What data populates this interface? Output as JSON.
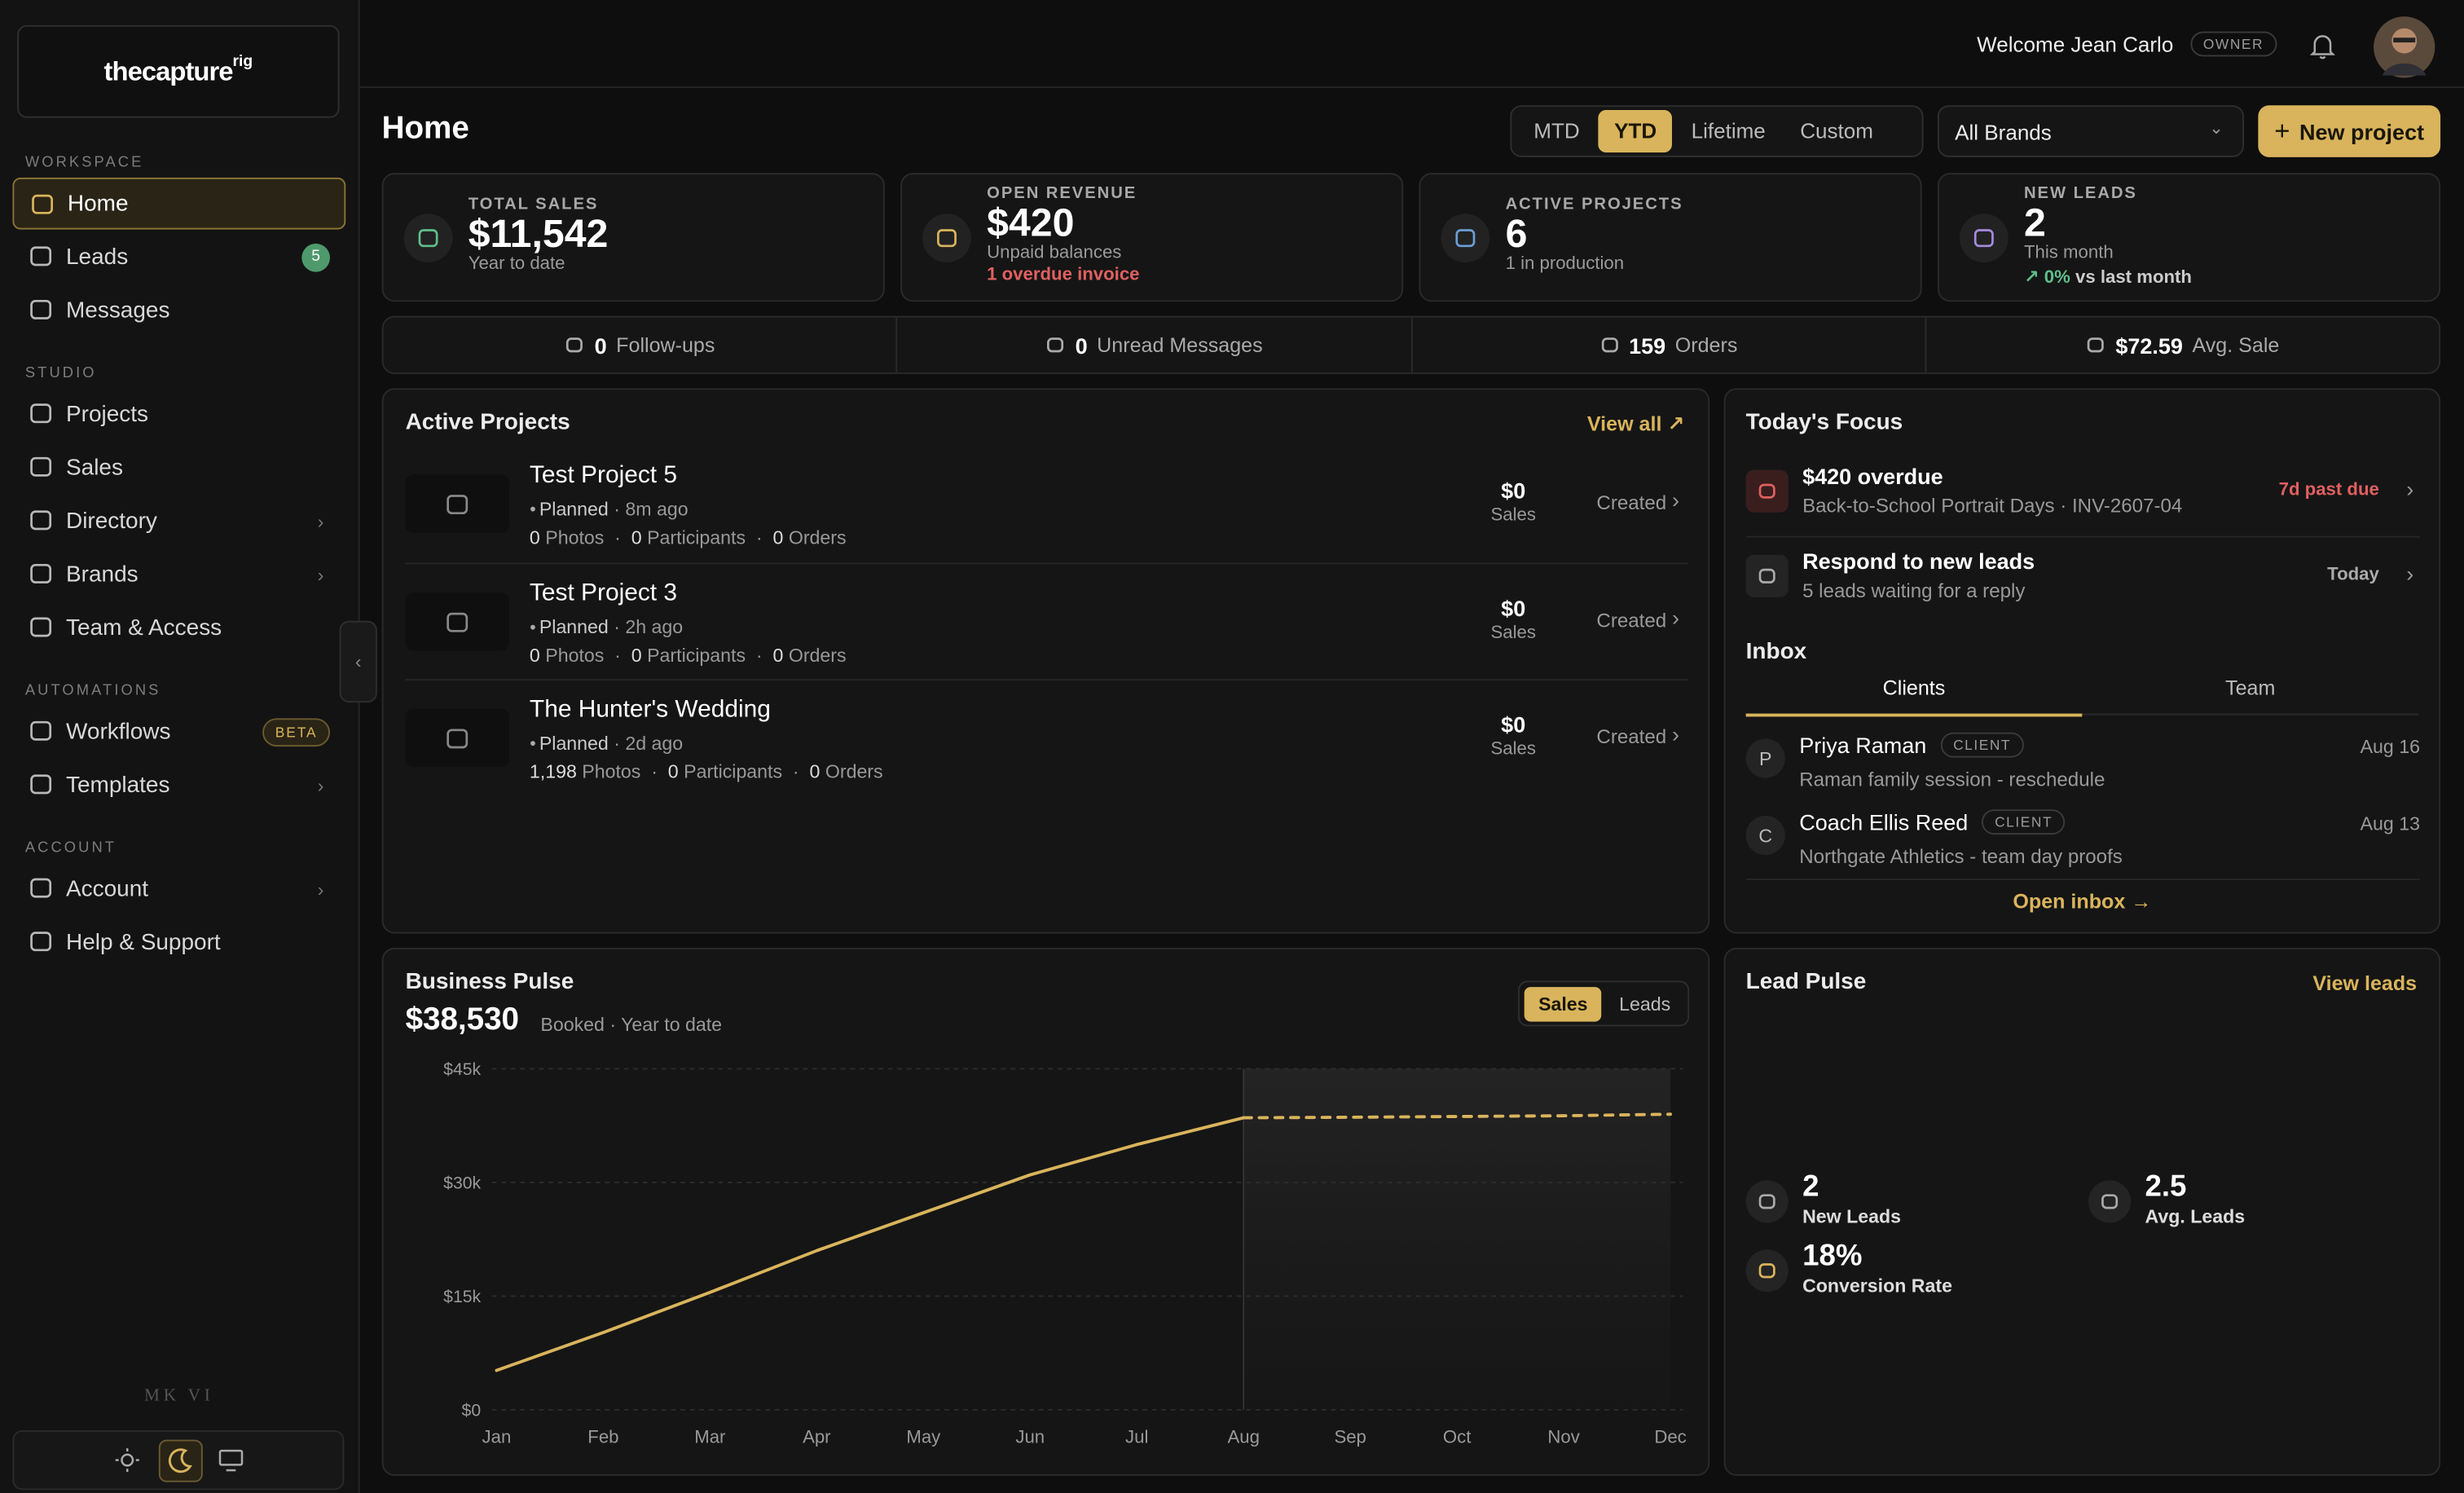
{
  "header": {
    "welcome": "Welcome Jean Carlo",
    "role": "OWNER"
  },
  "sidebar": {
    "logo_main": "thecapture",
    "logo_sup": "rig",
    "sections": [
      {
        "title": "WORKSPACE",
        "items": [
          {
            "label": "Home",
            "active": true
          },
          {
            "label": "Leads",
            "badge": "5"
          },
          {
            "label": "Messages"
          }
        ]
      },
      {
        "title": "STUDIO",
        "items": [
          {
            "label": "Projects"
          },
          {
            "label": "Sales"
          },
          {
            "label": "Directory",
            "submenu": true
          },
          {
            "label": "Brands",
            "submenu": true
          },
          {
            "label": "Team & Access"
          }
        ]
      },
      {
        "title": "AUTOMATIONS",
        "items": [
          {
            "label": "Workflows",
            "tag": "BETA"
          },
          {
            "label": "Templates",
            "submenu": true
          }
        ]
      },
      {
        "title": "ACCOUNT",
        "items": [
          {
            "label": "Account",
            "submenu": true
          },
          {
            "label": "Help & Support"
          }
        ]
      }
    ],
    "version": "MK VI"
  },
  "page": {
    "title": "Home",
    "periods": [
      "MTD",
      "YTD",
      "Lifetime",
      "Custom"
    ],
    "active_period": 1,
    "brand_select": "All Brands",
    "new_project": "New project"
  },
  "kpis": [
    {
      "label": "TOTAL SALES",
      "value": "$11,542",
      "sub": "Year to date",
      "color": "#5fbf8a"
    },
    {
      "label": "OPEN REVENUE",
      "value": "$420",
      "sub": "Unpaid balances",
      "alert": "1 overdue invoice",
      "color": "#d9b45c"
    },
    {
      "label": "ACTIVE PROJECTS",
      "value": "6",
      "sub": "1 in production",
      "color": "#6b9fd6"
    },
    {
      "label": "NEW LEADS",
      "value": "2",
      "sub": "This month",
      "trend": "0%",
      "trend_text": "vs last month",
      "color": "#a58be0"
    }
  ],
  "stats": [
    {
      "value": "0",
      "label": "Follow-ups"
    },
    {
      "value": "0",
      "label": "Unread Messages"
    },
    {
      "value": "159",
      "label": "Orders"
    },
    {
      "value": "$72.59",
      "label": "Avg. Sale"
    }
  ],
  "active_projects": {
    "title": "Active Projects",
    "view_all": "View all",
    "metric_labels": [
      "Photos",
      "Participants",
      "Orders"
    ],
    "sales_label": "Sales",
    "projects": [
      {
        "name": "Test Project 5",
        "status": "Planned",
        "time": "8m ago",
        "metrics": [
          "0",
          "0",
          "0"
        ],
        "sales": "$0",
        "state": "Created"
      },
      {
        "name": "Test Project 3",
        "status": "Planned",
        "time": "2h ago",
        "metrics": [
          "0",
          "0",
          "0"
        ],
        "sales": "$0",
        "state": "Created"
      },
      {
        "name": "The Hunter's Wedding",
        "status": "Planned",
        "time": "2d ago",
        "metrics": [
          "1,198",
          "0",
          "0"
        ],
        "sales": "$0",
        "state": "Created"
      }
    ]
  },
  "focus": {
    "title": "Today's Focus",
    "items": [
      {
        "title": "$420 overdue",
        "sub": "Back-to-School Portrait Days · INV-2607-04",
        "tag": "7d past due",
        "urgent": true
      },
      {
        "title": "Respond to new leads",
        "sub": "5 leads waiting for a reply",
        "tag": "Today"
      }
    ]
  },
  "inbox": {
    "title": "Inbox",
    "tabs": [
      "Clients",
      "Team"
    ],
    "active_tab": 0,
    "messages": [
      {
        "initial": "P",
        "name": "Priya Raman",
        "tag": "CLIENT",
        "date": "Aug 16",
        "preview": "Raman family session - reschedule"
      },
      {
        "initial": "C",
        "name": "Coach Ellis Reed",
        "tag": "CLIENT",
        "date": "Aug 13",
        "preview": "Northgate Athletics - team day proofs"
      }
    ],
    "open": "Open inbox"
  },
  "business_pulse": {
    "title": "Business Pulse",
    "total": "$38,530",
    "caption": "Booked · Year to date",
    "toggles": [
      "Sales",
      "Leads"
    ],
    "active_toggle": 0,
    "chart_data": {
      "type": "line",
      "categories": [
        "Jan",
        "Feb",
        "Mar",
        "Apr",
        "May",
        "Jun",
        "Jul",
        "Aug",
        "Sep",
        "Oct",
        "Nov",
        "Dec"
      ],
      "series": [
        {
          "color": "#d9b45c",
          "values": [
            5200,
            10200,
            15500,
            21000,
            26000,
            31000,
            35000,
            38530,
            null,
            null,
            null,
            null
          ]
        },
        {
          "color": "#d9b45c",
          "dashed": true,
          "values": [
            null,
            null,
            null,
            null,
            null,
            null,
            null,
            38530,
            38600,
            38700,
            38800,
            39000
          ]
        }
      ],
      "ylim": [
        0,
        45000
      ],
      "yticks": [
        {
          "value": 0,
          "label": "$0"
        },
        {
          "value": 15000,
          "label": "$15k"
        },
        {
          "value": 30000,
          "label": "$30k"
        },
        {
          "value": 45000,
          "label": "$45k"
        }
      ],
      "grid": true
    }
  },
  "lead_pulse": {
    "title": "Lead Pulse",
    "link": "View leads",
    "metrics": [
      {
        "value": "2",
        "label": "New Leads"
      },
      {
        "value": "2.5",
        "label": "Avg. Leads"
      },
      {
        "value": "18%",
        "label": "Conversion Rate"
      }
    ]
  }
}
